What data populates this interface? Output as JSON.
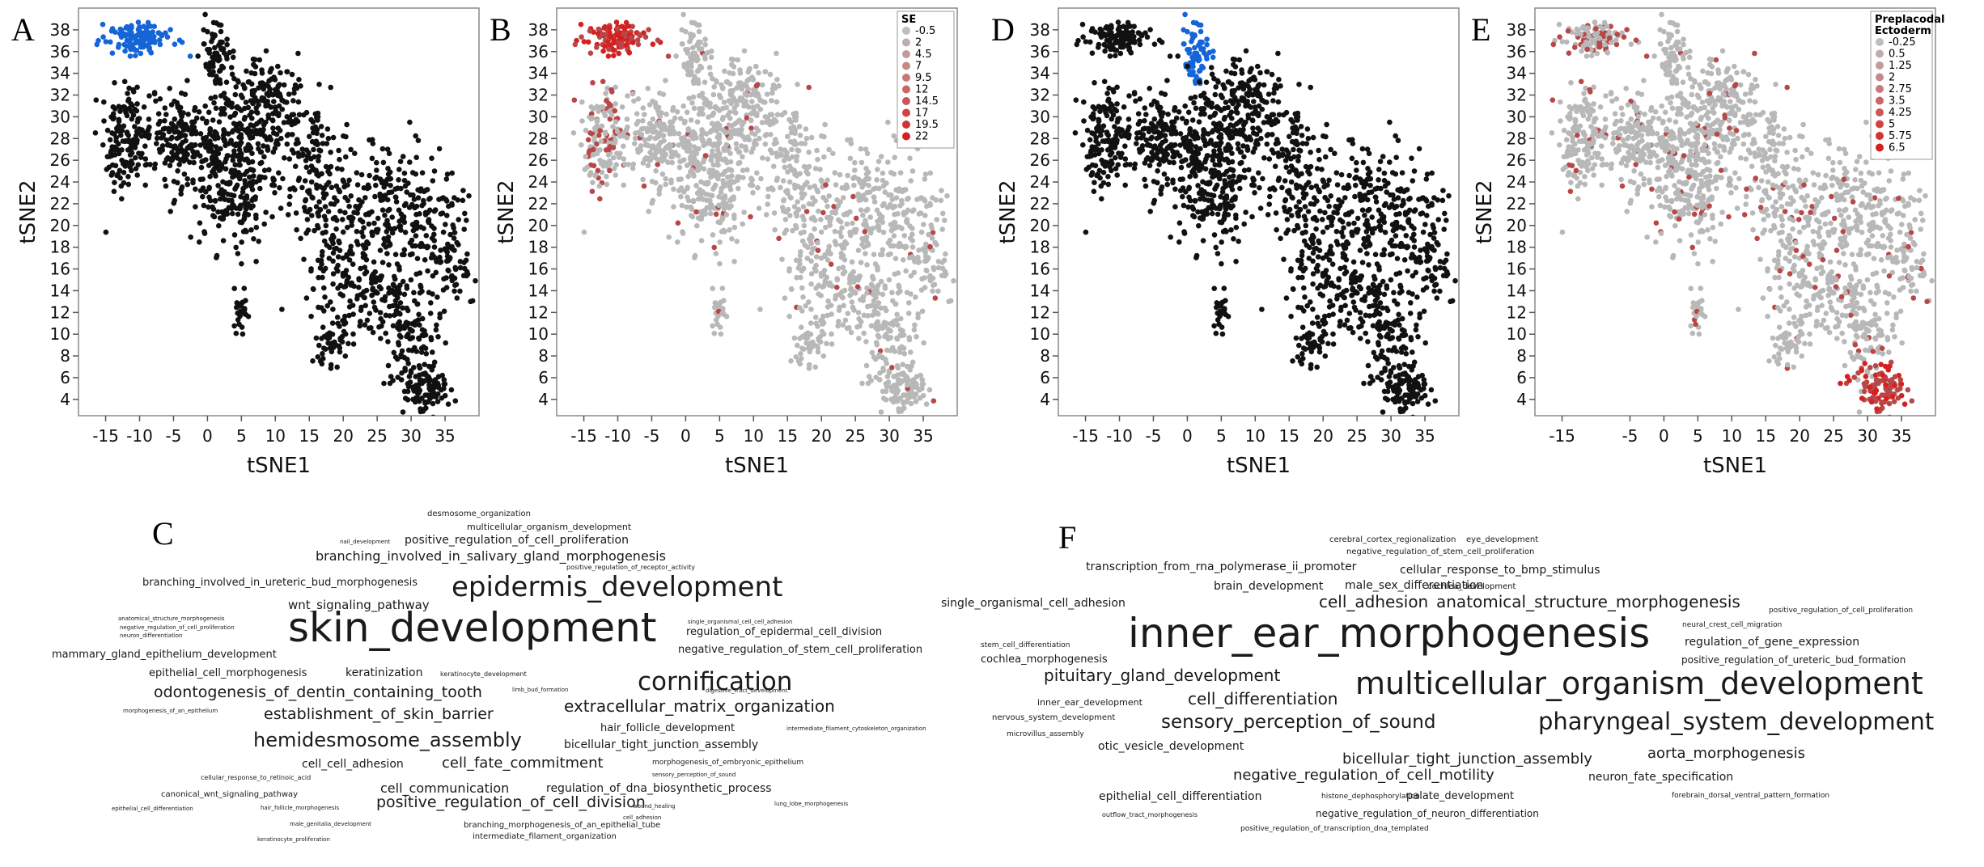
{
  "figure": {
    "panels": [
      "A",
      "B",
      "D",
      "E"
    ],
    "wordcloud_labels": [
      "C",
      "F"
    ]
  },
  "colors": {
    "black_points": "#111111",
    "blue_highlight": "#1565d8",
    "gray_points": "#b8b8b8",
    "red_high": "#d62020",
    "red_mid": "#b84848"
  },
  "chart_data": [
    {
      "panel": "A",
      "type": "scatter",
      "xlabel": "tSNE1",
      "ylabel": "tSNE2",
      "xticks": [
        "-15",
        "-10",
        "-5",
        "0",
        "5",
        "10",
        "15",
        "20",
        "25",
        "30",
        "35"
      ],
      "yticks": [
        "4",
        "6",
        "8",
        "10",
        "12",
        "14",
        "16",
        "18",
        "20",
        "22",
        "24",
        "26",
        "28",
        "30",
        "32",
        "34",
        "36",
        "38"
      ],
      "xlim": [
        -19,
        40
      ],
      "ylim": [
        2.5,
        40
      ],
      "highlight": {
        "cluster": "top-left",
        "x_range": [
          -15,
          -3
        ],
        "y_range": [
          35.5,
          39
        ],
        "color": "blue"
      }
    },
    {
      "panel": "B",
      "type": "scatter",
      "xlabel": "tSNE1",
      "ylabel": "tSNE2",
      "xticks": [
        "-15",
        "-10",
        "-5",
        "0",
        "5",
        "10",
        "15",
        "20",
        "25",
        "30",
        "35"
      ],
      "yticks": [
        "4",
        "6",
        "8",
        "10",
        "12",
        "14",
        "16",
        "18",
        "20",
        "22",
        "24",
        "26",
        "28",
        "30",
        "32",
        "34",
        "36",
        "38"
      ],
      "xlim": [
        -19,
        40
      ],
      "ylim": [
        2.5,
        40
      ],
      "legend": {
        "title": "SE",
        "position": "top-right",
        "values": [
          "-0.5",
          "2",
          "4.5",
          "7",
          "9.5",
          "12",
          "14.5",
          "17",
          "19.5",
          "22"
        ]
      }
    },
    {
      "panel": "D",
      "type": "scatter",
      "xlabel": "tSNE1",
      "ylabel": "tSNE2",
      "xticks": [
        "-15",
        "-10",
        "-5",
        "0",
        "5",
        "10",
        "15",
        "20",
        "25",
        "30",
        "35"
      ],
      "yticks": [
        "4",
        "6",
        "8",
        "10",
        "12",
        "14",
        "16",
        "18",
        "20",
        "22",
        "24",
        "26",
        "28",
        "30",
        "32",
        "34",
        "36",
        "38"
      ],
      "xlim": [
        -19,
        40
      ],
      "ylim": [
        2.5,
        40
      ],
      "highlight": {
        "cluster": "top-center",
        "x_range": [
          -3,
          3
        ],
        "y_range": [
          32,
          39
        ],
        "color": "blue"
      }
    },
    {
      "panel": "E",
      "type": "scatter",
      "xlabel": "tSNE1",
      "ylabel": "tSNE2",
      "xticks": [
        "-15",
        "-5",
        "0",
        "5",
        "10",
        "15",
        "20",
        "25",
        "30",
        "35"
      ],
      "yticks": [
        "4",
        "6",
        "8",
        "10",
        "12",
        "14",
        "16",
        "18",
        "20",
        "22",
        "24",
        "26",
        "28",
        "30",
        "32",
        "34",
        "36",
        "38"
      ],
      "xlim": [
        -19,
        40
      ],
      "ylim": [
        2.5,
        40
      ],
      "legend": {
        "title": [
          "Preplacodal",
          "Ectoderm"
        ],
        "position": "top-right",
        "values": [
          "-0.25",
          "0.5",
          "1.25",
          "2",
          "2.75",
          "3.5",
          "4.25",
          "5",
          "5.75",
          "6.5"
        ]
      }
    }
  ],
  "wordcloud_C": [
    "desmosome_organization",
    "multicellular_organism_development",
    "nail_development",
    "positive_regulation_of_cell_proliferation",
    "branching_involved_in_salivary_gland_morphogenesis",
    "positive_regulation_of_receptor_activity",
    "branching_involved_in_ureteric_bud_morphogenesis",
    "epidermis_development",
    "wnt_signaling_pathway",
    "anatomical_structure_morphogenesis",
    "negative_regulation_of_cell_proliferation",
    "neuron_differentiation",
    "skin_development",
    "single_organismal_cell_cell_adhesion",
    "regulation_of_epidermal_cell_division",
    "mammary_gland_epithelium_development",
    "negative_regulation_of_stem_cell_proliferation",
    "epithelial_cell_morphogenesis",
    "keratinization",
    "keratinocyte_development",
    "cornification",
    "odontogenesis_of_dentin_containing_tooth",
    "limb_bud_formation",
    "digestive_tract_development",
    "morphogenesis_of_an_epithelium",
    "establishment_of_skin_barrier",
    "extracellular_matrix_organization",
    "hair_follicle_development",
    "intermediate_filament_cytoskeleton_organization",
    "hemidesmosome_assembly",
    "bicellular_tight_junction_assembly",
    "cell_cell_adhesion",
    "cell_fate_commitment",
    "morphogenesis_of_embryonic_epithelium",
    "cellular_response_to_retinoic_acid",
    "sensory_perception_of_sound",
    "cell_communication",
    "canonical_wnt_signaling_pathway",
    "regulation_of_dna_biosynthetic_process",
    "epithelial_cell_differentiation",
    "hair_follicle_morphogenesis",
    "positive_regulation_of_cell_division",
    "wound_healing",
    "lung_lobe_morphogenesis",
    "cell_adhesion",
    "male_genitalia_development",
    "branching_morphogenesis_of_an_epithelial_tube",
    "keratinocyte_proliferation",
    "intermediate_filament_organization"
  ],
  "wordcloud_F": [
    "cerebral_cortex_regionalization",
    "eye_development",
    "negative_regulation_of_stem_cell_proliferation",
    "transcription_from_rna_polymerase_ii_promoter",
    "cellular_response_to_bmp_stimulus",
    "brain_development",
    "male_sex_differentiation",
    "cochlea_development",
    "single_organismal_cell_adhesion",
    "cell_adhesion",
    "anatomical_structure_morphogenesis",
    "positive_regulation_of_cell_proliferation",
    "neural_crest_cell_migration",
    "stem_cell_differentiation",
    "inner_ear_morphogenesis",
    "regulation_of_gene_expression",
    "cochlea_morphogenesis",
    "positive_regulation_of_ureteric_bud_formation",
    "pituitary_gland_development",
    "multicellular_organism_development",
    "inner_ear_development",
    "cell_differentiation",
    "nervous_system_development",
    "sensory_perception_of_sound",
    "pharyngeal_system_development",
    "microvillus_assembly",
    "otic_vesicle_development",
    "bicellular_tight_junction_assembly",
    "aorta_morphogenesis",
    "negative_regulation_of_cell_motility",
    "neuron_fate_specification",
    "epithelial_cell_differentiation",
    "histone_dephosphorylation",
    "palate_development",
    "forebrain_dorsal_ventral_pattern_formation",
    "outflow_tract_morphogenesis",
    "negative_regulation_of_neuron_differentiation",
    "positive_regulation_of_transcription_dna_templated"
  ]
}
